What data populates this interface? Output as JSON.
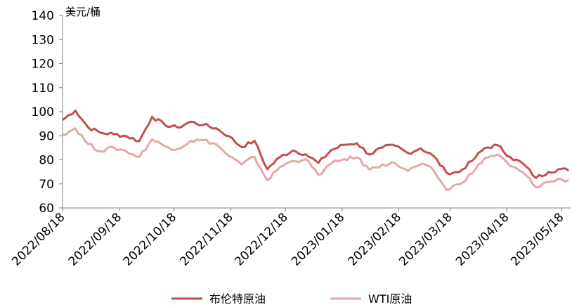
{
  "chart_data": {
    "type": "line",
    "title": "",
    "ylabel": "美元/桶",
    "xlabel": "",
    "ylim": [
      60,
      140
    ],
    "yticks": [
      60,
      70,
      80,
      90,
      100,
      110,
      120,
      130,
      140
    ],
    "x_tick_labels": [
      "2022/08/18",
      "2022/09/18",
      "2022/10/18",
      "2022/11/18",
      "2022/12/18",
      "2023/01/18",
      "2023/02/18",
      "2023/03/18",
      "2023/04/18",
      "2023/05/18"
    ],
    "grid": false,
    "legend_position": "bottom",
    "x": [
      "2022-08-18",
      "2022-08-25",
      "2022-09-01",
      "2022-09-08",
      "2022-09-15",
      "2022-09-22",
      "2022-09-29",
      "2022-10-06",
      "2022-10-13",
      "2022-10-20",
      "2022-10-27",
      "2022-11-03",
      "2022-11-10",
      "2022-11-17",
      "2022-11-24",
      "2022-12-01",
      "2022-12-08",
      "2022-12-15",
      "2022-12-22",
      "2022-12-29",
      "2023-01-05",
      "2023-01-12",
      "2023-01-19",
      "2023-01-26",
      "2023-02-02",
      "2023-02-09",
      "2023-02-16",
      "2023-02-23",
      "2023-03-02",
      "2023-03-09",
      "2023-03-16",
      "2023-03-23",
      "2023-03-30",
      "2023-04-06",
      "2023-04-13",
      "2023-04-20",
      "2023-04-27",
      "2023-05-04",
      "2023-05-11",
      "2023-05-18",
      "2023-05-22"
    ],
    "series": [
      {
        "name": "布伦特原油",
        "color": "#c0504d",
        "values": [
          96.6,
          100.5,
          93.5,
          91.2,
          90.7,
          89.8,
          87.8,
          97.9,
          94.5,
          93.4,
          95.8,
          94.5,
          93.1,
          89.8,
          85.3,
          87.9,
          76.1,
          81.2,
          83.9,
          82.3,
          78.7,
          84.0,
          86.2,
          86.9,
          82.2,
          85.1,
          85.9,
          82.8,
          84.8,
          81.6,
          74.7,
          74.9,
          79.5,
          84.9,
          86.1,
          81.1,
          78.4,
          72.5,
          75.0,
          76.3,
          75.5
        ]
      },
      {
        "name": "WTI原油",
        "color": "#e6a8a6",
        "values": [
          90.5,
          93.1,
          86.6,
          83.5,
          85.1,
          83.5,
          81.2,
          88.5,
          85.6,
          84.5,
          87.9,
          88.2,
          86.5,
          81.6,
          78.0,
          81.2,
          71.5,
          77.0,
          79.6,
          80.3,
          73.7,
          78.4,
          80.3,
          81.0,
          75.9,
          78.1,
          78.5,
          75.4,
          78.2,
          75.7,
          67.5,
          69.9,
          74.4,
          80.7,
          82.2,
          77.4,
          74.8,
          68.6,
          70.9,
          71.9,
          71.5
        ]
      }
    ]
  }
}
